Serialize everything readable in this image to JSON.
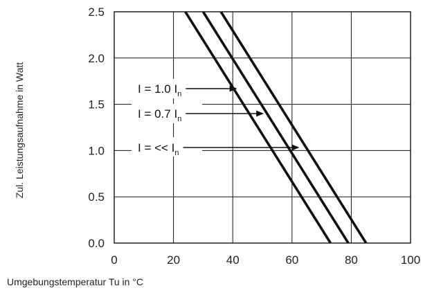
{
  "chart_data": {
    "type": "line",
    "title": "",
    "xlabel": "Umgebungstemperatur Tu in °C",
    "ylabel": "Zul. Leistungsaufnahme in Watt",
    "xlim": [
      0,
      100
    ],
    "ylim": [
      0,
      2.5
    ],
    "x_ticks": [
      "0",
      "20",
      "40",
      "60",
      "80",
      "100"
    ],
    "y_ticks": [
      "0.0",
      "0.5",
      "1.0",
      "1.5",
      "2.0",
      "2.5"
    ],
    "x_tick_values": [
      0,
      20,
      40,
      60,
      80,
      100
    ],
    "y_tick_values": [
      0,
      0.5,
      1.0,
      1.5,
      2.0,
      2.5
    ],
    "grid": true,
    "legend": "none",
    "series": [
      {
        "name": "I = 1.0 In",
        "points": [
          [
            24,
            2.5
          ],
          [
            73,
            0.0
          ]
        ]
      },
      {
        "name": "I = 0.7 In",
        "points": [
          [
            30,
            2.5
          ],
          [
            79,
            0.0
          ]
        ]
      },
      {
        "name": "I = << In",
        "points": [
          [
            36,
            2.5
          ],
          [
            85,
            0.0
          ]
        ]
      }
    ],
    "annotations": [
      {
        "main": "I = 1.0 I",
        "sub": "n",
        "arrow_to": [
          41.5,
          1.66
        ]
      },
      {
        "main": "I = 0.7 I",
        "sub": "n",
        "arrow_to": [
          50.5,
          1.4
        ]
      },
      {
        "main": "I = << I",
        "sub": "n",
        "arrow_to": [
          62.5,
          1.1
        ]
      }
    ]
  }
}
